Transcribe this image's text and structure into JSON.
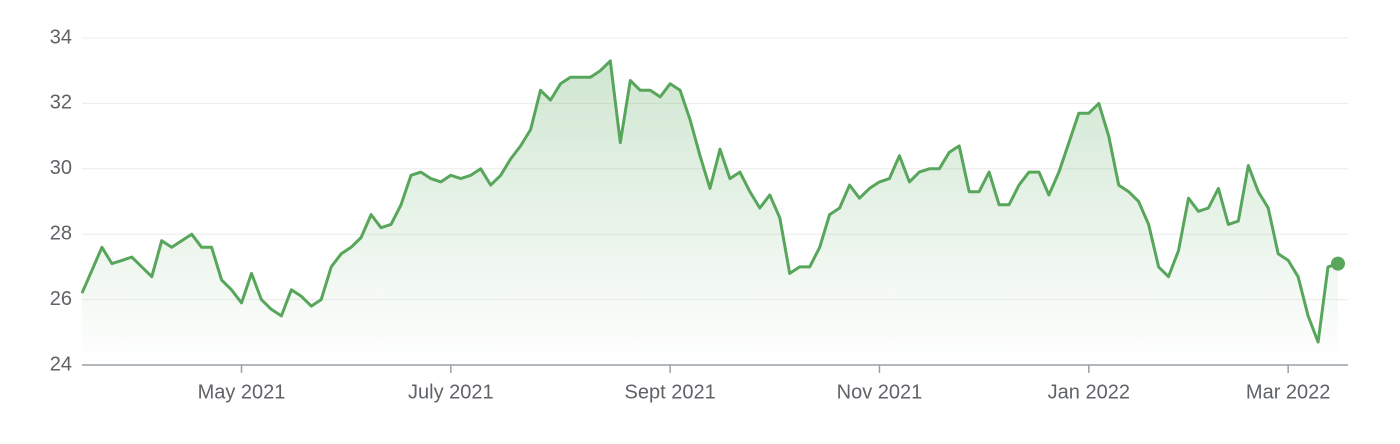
{
  "chart_data": {
    "type": "line",
    "categories": [
      null,
      null,
      null,
      null,
      null,
      null,
      null,
      null,
      null,
      null,
      null,
      null,
      null,
      null,
      null,
      null,
      "May 2021",
      null,
      null,
      null,
      null,
      null,
      null,
      null,
      null,
      null,
      null,
      null,
      null,
      null,
      null,
      null,
      null,
      null,
      null,
      null,
      null,
      "July 2021",
      null,
      null,
      null,
      null,
      null,
      null,
      null,
      null,
      null,
      null,
      null,
      null,
      null,
      null,
      null,
      null,
      null,
      null,
      null,
      null,
      null,
      "Sept 2021",
      null,
      null,
      null,
      null,
      null,
      null,
      null,
      null,
      null,
      null,
      null,
      null,
      null,
      null,
      null,
      null,
      null,
      null,
      null,
      null,
      "Nov 2021",
      null,
      null,
      null,
      null,
      null,
      null,
      null,
      null,
      null,
      null,
      null,
      null,
      null,
      null,
      null,
      null,
      null,
      null,
      null,
      null,
      "Jan 2022",
      null,
      null,
      null,
      null,
      null,
      null,
      null,
      null,
      null,
      null,
      null,
      null,
      null,
      null,
      null,
      null,
      null,
      null,
      null,
      "Mar 2022",
      null,
      null,
      null,
      null,
      null
    ],
    "series": [
      {
        "color": "#57a65b",
        "values": [
          26.2,
          26.9,
          27.6,
          27.1,
          27.2,
          27.3,
          27.0,
          26.7,
          27.8,
          27.6,
          27.8,
          28.0,
          27.6,
          27.6,
          26.6,
          26.3,
          25.9,
          26.8,
          26.0,
          25.7,
          25.5,
          26.3,
          26.1,
          25.8,
          26.0,
          27.0,
          27.4,
          27.6,
          27.9,
          28.6,
          28.2,
          28.3,
          28.9,
          29.8,
          29.9,
          29.7,
          29.6,
          29.8,
          29.7,
          29.8,
          30.0,
          29.5,
          29.8,
          30.3,
          30.7,
          31.2,
          32.4,
          32.1,
          32.6,
          32.8,
          32.8,
          32.8,
          33.0,
          33.3,
          30.8,
          32.7,
          32.4,
          32.4,
          32.2,
          32.6,
          32.4,
          31.5,
          30.4,
          29.4,
          30.6,
          29.7,
          29.9,
          29.3,
          28.8,
          29.2,
          28.5,
          26.8,
          27.0,
          27.0,
          27.6,
          28.6,
          28.8,
          29.5,
          29.1,
          29.4,
          29.6,
          29.7,
          30.4,
          29.6,
          29.9,
          30.0,
          30.0,
          30.5,
          30.7,
          29.3,
          29.3,
          29.9,
          28.9,
          28.9,
          29.5,
          29.9,
          29.9,
          29.2,
          29.9,
          30.8,
          31.7,
          31.7,
          32.0,
          31.0,
          29.5,
          29.3,
          29.0,
          28.3,
          27.0,
          26.7,
          27.5,
          29.1,
          28.7,
          28.8,
          29.4,
          28.3,
          28.4,
          30.1,
          29.3,
          28.8,
          27.4,
          27.2,
          26.7,
          25.5,
          24.7,
          27.0,
          27.1
        ]
      }
    ],
    "ylim": [
      24,
      34
    ],
    "yticks": [
      24,
      26,
      28,
      30,
      32,
      34
    ],
    "grid": true
  }
}
